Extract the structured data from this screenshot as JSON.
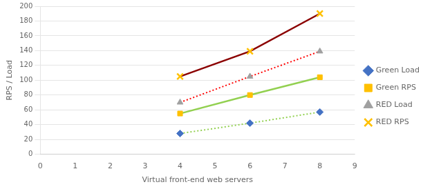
{
  "chart_data": {
    "type": "line",
    "xlabel": "Virtual front-end web servers",
    "ylabel": "RPS / Load",
    "x": [
      4,
      6,
      8
    ],
    "series": [
      {
        "name": "Green Load",
        "color": "#92d050",
        "colors": [
          "#4472c4",
          "#4472c4",
          "#4472c4"
        ],
        "marker": "diamond",
        "line_style": "dotted",
        "values": [
          28,
          42,
          57
        ]
      },
      {
        "name": "Green RPS",
        "color": "#92d050",
        "colors": [
          "#ffc000",
          "#ffc000",
          "#ffc000"
        ],
        "marker": "square",
        "line_style": "solid",
        "values": [
          55,
          80,
          104
        ]
      },
      {
        "name": "RED Load",
        "color": "#ff0000",
        "colors": [
          "#a0a0a0",
          "#a0a0a0",
          "#a0a0a0"
        ],
        "marker": "triangle",
        "line_style": "dotted",
        "values": [
          70,
          105,
          139
        ]
      },
      {
        "name": "RED RPS",
        "color": "#8b0000",
        "colors": [
          "#ffc000",
          "#ffc000",
          "#ffc000"
        ],
        "marker": "x",
        "line_style": "solid",
        "values": [
          105,
          139,
          190
        ]
      }
    ],
    "xlim": [
      0,
      9
    ],
    "ylim": [
      0,
      200
    ],
    "xticks": [
      0,
      1,
      2,
      3,
      4,
      5,
      6,
      7,
      8,
      9
    ],
    "yticks": [
      0,
      20,
      40,
      60,
      80,
      100,
      120,
      140,
      160,
      180,
      200
    ],
    "grid": "y",
    "legend": "right"
  }
}
